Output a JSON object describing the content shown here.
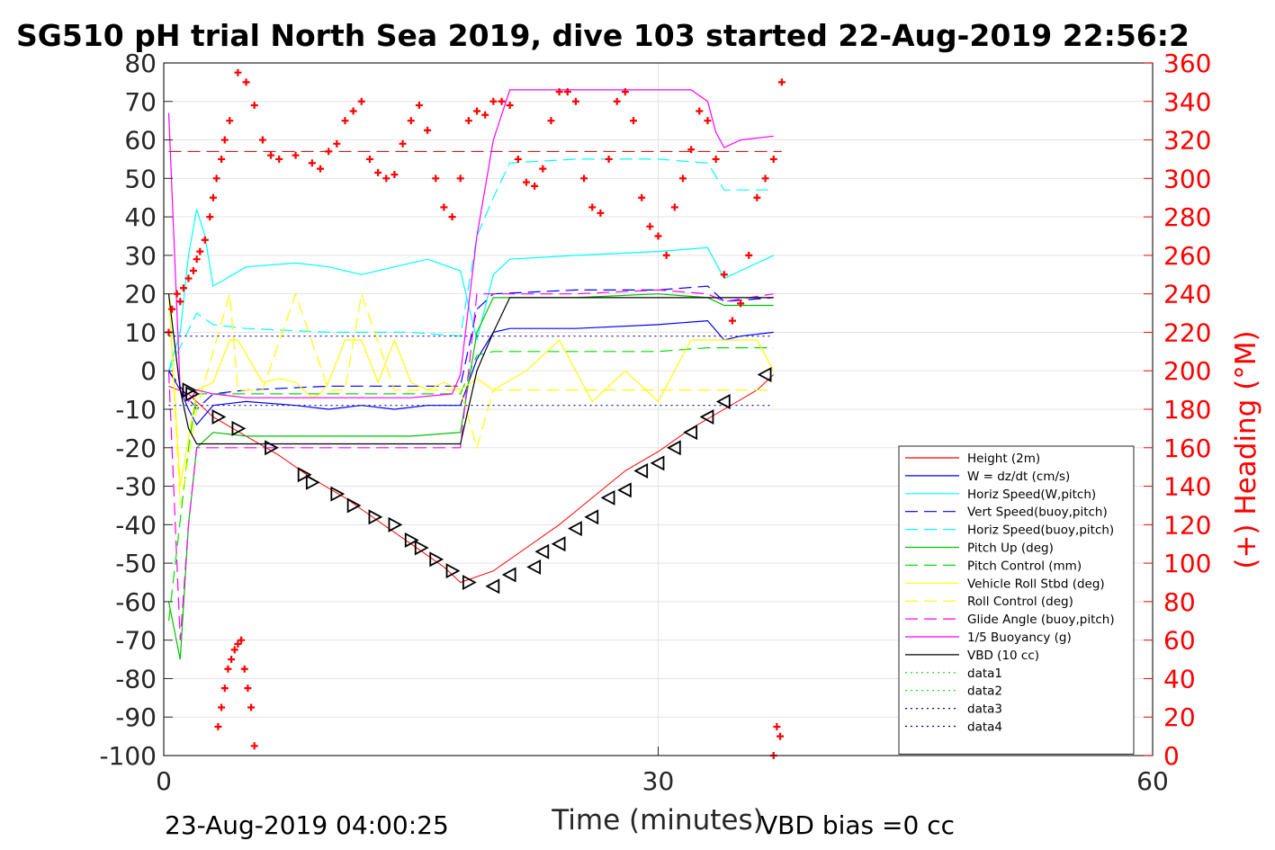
{
  "chart_data": {
    "type": "line",
    "title": "SG510 pH trial North Sea 2019, dive 103 started 22-Aug-2019 22:56:2",
    "xlabel": "Time (minutes)",
    "ylabel_right": "(+) Heading (°M)",
    "xlim": [
      0,
      60
    ],
    "ylim": [
      -100,
      80
    ],
    "ylim_right": [
      0,
      360
    ],
    "x_ticks": [
      "0",
      "30",
      "60"
    ],
    "y_ticks": [
      "80",
      "70",
      "60",
      "50",
      "40",
      "30",
      "20",
      "10",
      "0",
      "-10",
      "-20",
      "-30",
      "-40",
      "-50",
      "-60",
      "-70",
      "-80",
      "-90",
      "-100"
    ],
    "y_ticks_right": [
      "360",
      "340",
      "320",
      "300",
      "280",
      "260",
      "240",
      "220",
      "200",
      "180",
      "160",
      "140",
      "120",
      "100",
      "80",
      "60",
      "40",
      "20",
      "0"
    ],
    "grid": true,
    "legend_position": "lower-right",
    "footer_left": "23-Aug-2019 04:00:25",
    "footer_right": "VBD bias =0 cc",
    "colors": {
      "height": "#ff0000",
      "w": "#0000ff",
      "horiz_w": "#00ffff",
      "vert_buoy": "#0000ff",
      "horiz_buoy": "#00ffff",
      "pitch_up": "#00c000",
      "pitch_ctl": "#00e000",
      "roll": "#ffff00",
      "roll_ctl": "#ffff00",
      "glide": "#ff00ff",
      "buoy": "#ff00ff",
      "vbd": "#000000",
      "heading": "#ff0000"
    },
    "series": [
      {
        "key": "height",
        "name": "Height (2m)",
        "style": "solid",
        "color": "#ff0000",
        "x": [
          0.3,
          1.5,
          3,
          5,
          7,
          9,
          11,
          13,
          15,
          17,
          18,
          20,
          22,
          24,
          26,
          28,
          30,
          32,
          34,
          36,
          37
        ],
        "y": [
          -4,
          -6,
          -12,
          -17,
          -22,
          -28,
          -33,
          -39,
          -45,
          -51,
          -55,
          -52,
          -46,
          -40,
          -33,
          -26,
          -21,
          -15,
          -10,
          -5,
          -1
        ]
      },
      {
        "key": "w",
        "name": "W = dz/dt (cm/s)",
        "style": "solid",
        "color": "#0000ff",
        "x": [
          0.3,
          1,
          1.5,
          2,
          3,
          5,
          8,
          10,
          12,
          14,
          16,
          18,
          19,
          20,
          21,
          25,
          30,
          33,
          34,
          35,
          37
        ],
        "y": [
          0,
          -5,
          -10,
          -14,
          -9,
          -8,
          -9,
          -10,
          -9,
          -10,
          -9,
          -9,
          3,
          10,
          11,
          11,
          12,
          13,
          8,
          9,
          10
        ]
      },
      {
        "key": "horiz_w",
        "name": "Horiz Speed(W,pitch)",
        "style": "solid",
        "color": "#00ffff",
        "x": [
          0.3,
          1,
          1.5,
          2,
          2.5,
          3,
          5,
          8,
          10,
          12,
          14,
          16,
          18,
          19,
          20,
          21,
          25,
          30,
          33,
          34,
          35,
          37
        ],
        "y": [
          0,
          10,
          30,
          42,
          35,
          22,
          27,
          28,
          27,
          25,
          27,
          29,
          26,
          8,
          25,
          29,
          30,
          31,
          32,
          24,
          26,
          30
        ]
      },
      {
        "key": "vert_buoy",
        "name": "Vert Speed(buoy,pitch)",
        "style": "dash",
        "color": "#0000ff",
        "x": [
          0.3,
          2,
          3,
          5,
          10,
          15,
          18,
          19,
          20,
          25,
          30,
          33,
          34,
          37
        ],
        "y": [
          0,
          -10,
          -6,
          -5,
          -4,
          -4,
          -4,
          16,
          20,
          21,
          21,
          22,
          18,
          19
        ]
      },
      {
        "key": "horiz_buoy",
        "name": "Horiz Speed(buoy,pitch)",
        "style": "dash",
        "color": "#00ffff",
        "x": [
          0.3,
          2,
          3,
          5,
          10,
          15,
          18,
          19,
          20,
          21,
          25,
          30,
          33,
          34,
          37
        ],
        "y": [
          0,
          15,
          12,
          11,
          10,
          10,
          9,
          35,
          45,
          54,
          55,
          55,
          54,
          47,
          47
        ]
      },
      {
        "key": "pitch_up",
        "name": "Pitch Up (deg)",
        "style": "solid",
        "color": "#00c000",
        "x": [
          0.3,
          1,
          1.5,
          2,
          3,
          5,
          10,
          15,
          18,
          19,
          20,
          25,
          30,
          33,
          34,
          37
        ],
        "y": [
          -60,
          -75,
          -40,
          -20,
          -16,
          -17,
          -17,
          -17,
          -16,
          10,
          19,
          19,
          20,
          19,
          17,
          17
        ]
      },
      {
        "key": "pitch_ctl",
        "name": "Pitch Control (mm)",
        "style": "dash",
        "color": "#00e000",
        "x": [
          0.3,
          1.5,
          2,
          5,
          10,
          15,
          18,
          19,
          20,
          25,
          30,
          33,
          37
        ],
        "y": [
          -65,
          -20,
          -6,
          -6,
          -6,
          -6,
          -6,
          4,
          5,
          5,
          5,
          6,
          6
        ]
      },
      {
        "key": "roll",
        "name": "Vehicle Roll Stbd (deg)",
        "style": "solid",
        "color": "#ffff00",
        "x": [
          0.3,
          1,
          2,
          3,
          4,
          4.5,
          6,
          7,
          8,
          9,
          9.5,
          10,
          11,
          12,
          13,
          14,
          15,
          16,
          17,
          18,
          19,
          20,
          22,
          24,
          26,
          28,
          30,
          32,
          34,
          36,
          37
        ],
        "y": [
          20,
          -30,
          -5,
          -3,
          8,
          8,
          -3,
          -2,
          -3,
          -7,
          -6,
          -3,
          8,
          8,
          -3,
          8,
          -3,
          -5,
          -3,
          -5,
          -2,
          -5,
          0,
          8,
          -8,
          0,
          -8,
          8,
          8,
          8,
          0
        ]
      },
      {
        "key": "roll_ctl",
        "name": "Roll Control (deg)",
        "style": "dash",
        "color": "#ffff00",
        "x": [
          0.3,
          1,
          2,
          4,
          4.5,
          6,
          8,
          10,
          11,
          12,
          14,
          16,
          18,
          19,
          20,
          22,
          24,
          26,
          28,
          30,
          32,
          34,
          37
        ],
        "y": [
          20,
          -35,
          -10,
          20,
          -5,
          -5,
          20,
          -5,
          -5,
          20,
          -5,
          -5,
          -5,
          -20,
          -5,
          -5,
          -5,
          -5,
          -5,
          -5,
          -5,
          -5,
          -5
        ]
      },
      {
        "key": "glide",
        "name": "Glide Angle (buoy,pitch)",
        "style": "dash",
        "color": "#ff00ff",
        "x": [
          0.3,
          1,
          1.5,
          2,
          3,
          5,
          10,
          15,
          18,
          19,
          20,
          25,
          30,
          33,
          34,
          37
        ],
        "y": [
          0,
          -70,
          -40,
          -20,
          -20,
          -20,
          -20,
          -20,
          -20,
          20,
          20,
          20,
          21,
          20,
          18,
          20
        ]
      },
      {
        "key": "buoy",
        "name": "1/5 Buoyancy (g)",
        "style": "solid",
        "color": "#ff00ff",
        "x": [
          0.3,
          1,
          1.5,
          2,
          3,
          5,
          10,
          15,
          17.5,
          18,
          19,
          20,
          21,
          25,
          30,
          32,
          33,
          33.5,
          34,
          35,
          37
        ],
        "y": [
          67,
          -5,
          -8,
          -5,
          -6,
          -7,
          -7,
          -7,
          -6,
          -1,
          35,
          60,
          73,
          73,
          73,
          73,
          70,
          62,
          58,
          60,
          61
        ]
      },
      {
        "key": "vbd",
        "name": "VBD (10 cc)",
        "style": "solid",
        "color": "#000000",
        "x": [
          0.3,
          1,
          1.5,
          2,
          3,
          5,
          10,
          15,
          18,
          19,
          20,
          21,
          25,
          30,
          33,
          37
        ],
        "y": [
          20,
          -5,
          -15,
          -19,
          -19,
          -19,
          -19,
          -19,
          -19,
          0,
          10,
          19,
          19,
          19,
          19,
          19
        ]
      },
      {
        "key": "data1",
        "name": "data1",
        "style": "dot",
        "color": "#00e000",
        "x": [],
        "y": []
      },
      {
        "key": "data2",
        "name": "data2",
        "style": "dot",
        "color": "#00e000",
        "x": [],
        "y": []
      },
      {
        "key": "data3",
        "name": "data3",
        "style": "dot",
        "color": "#0000a0",
        "x": [
          0.3,
          37
        ],
        "y": [
          9,
          9
        ]
      },
      {
        "key": "data4",
        "name": "data4",
        "style": "dot",
        "color": "#0000a0",
        "x": [
          0.3,
          37
        ],
        "y": [
          -9,
          -9
        ]
      }
    ],
    "heading_ref_line": {
      "value": 314,
      "axis": "right",
      "color": "#c00000"
    },
    "heading": {
      "axis": "right",
      "marker": "+",
      "color": "#ff0000",
      "x": [
        0.3,
        0.5,
        0.8,
        1,
        1.2,
        1.5,
        1.8,
        2,
        2.2,
        2.5,
        2.8,
        3,
        3.2,
        3.5,
        3.7,
        4,
        4.5,
        5,
        5.5,
        6,
        6.5,
        7,
        8,
        9,
        9.5,
        10,
        10.5,
        11,
        11.5,
        12,
        12.5,
        13,
        13.5,
        14,
        14.5,
        15,
        15.5,
        16,
        16.5,
        17,
        17.5,
        18,
        18.5,
        19,
        19.5,
        20,
        20.5,
        21,
        21.5,
        22,
        22.5,
        23,
        23.5,
        24,
        24.5,
        25,
        25.5,
        26,
        26.5,
        27,
        27.5,
        28,
        28.5,
        29,
        29.5,
        30,
        30.5,
        31,
        31.5,
        32,
        32.5,
        33,
        33.5,
        34,
        34.5,
        35,
        35.5,
        36,
        36.5,
        37,
        37.5
      ],
      "y": [
        220,
        232,
        240,
        236,
        243,
        248,
        252,
        258,
        262,
        268,
        280,
        290,
        300,
        310,
        320,
        330,
        355,
        350,
        338,
        320,
        312,
        310,
        312,
        308,
        305,
        314,
        318,
        330,
        335,
        340,
        310,
        303,
        300,
        302,
        318,
        330,
        338,
        325,
        300,
        285,
        280,
        300,
        330,
        335,
        333,
        340,
        340,
        338,
        310,
        298,
        296,
        305,
        330,
        345,
        345,
        340,
        300,
        285,
        282,
        310,
        340,
        345,
        330,
        290,
        275,
        270,
        260,
        285,
        300,
        315,
        335,
        330,
        310,
        250,
        226,
        235,
        260,
        290,
        300,
        310,
        350
      ]
    },
    "heading_low": {
      "axis": "right",
      "marker": "+",
      "color": "#ff0000",
      "x": [
        3.3,
        3.5,
        3.7,
        3.9,
        4.1,
        4.3,
        4.5,
        4.7,
        4.9,
        5.1,
        5.3,
        5.5,
        37,
        37.2,
        37.4
      ],
      "y": [
        15,
        25,
        35,
        45,
        50,
        55,
        58,
        60,
        45,
        35,
        25,
        5,
        0,
        15,
        10
      ]
    },
    "triangles": {
      "color": "#000000",
      "x": [
        1.5,
        1.7,
        3.3,
        4.5,
        6.5,
        8.5,
        9,
        10.5,
        11.5,
        12.8,
        14,
        15,
        15.6,
        16.5,
        17.5,
        18.5,
        20,
        21,
        22.5,
        23,
        24,
        25,
        26,
        27,
        28,
        29,
        30,
        31,
        32,
        33,
        34,
        36.5
      ],
      "y": [
        -5,
        -6,
        -12,
        -15,
        -20,
        -27,
        -29,
        -32,
        -35,
        -38,
        -40,
        -44,
        -46,
        -49,
        -52,
        -55,
        -56,
        -53,
        -51,
        -47,
        -45,
        -41,
        -38,
        -33,
        -31,
        -26,
        -24,
        -20,
        -16,
        -12,
        -8,
        -1
      ]
    }
  }
}
